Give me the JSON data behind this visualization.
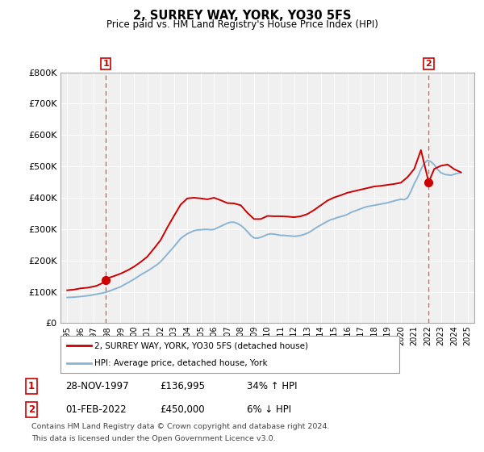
{
  "title": "2, SURREY WAY, YORK, YO30 5FS",
  "subtitle": "Price paid vs. HM Land Registry's House Price Index (HPI)",
  "background_color": "#ffffff",
  "plot_bg_color": "#f0f0f0",
  "grid_color": "#ffffff",
  "hpi_line_color": "#8ab4d4",
  "price_line_color": "#cc0000",
  "sale1_date": "28-NOV-1997",
  "sale1_price": 136995,
  "sale1_hpi_pct": "34% ↑ HPI",
  "sale2_date": "01-FEB-2022",
  "sale2_price": 450000,
  "sale2_hpi_pct": "6% ↓ HPI",
  "sale1_x": 1997.9,
  "sale2_x": 2022.08,
  "ylim_min": 0,
  "ylim_max": 800000,
  "xlim_min": 1994.5,
  "xlim_max": 2025.5,
  "yticks": [
    0,
    100000,
    200000,
    300000,
    400000,
    500000,
    600000,
    700000,
    800000
  ],
  "ytick_labels": [
    "£0",
    "£100K",
    "£200K",
    "£300K",
    "£400K",
    "£500K",
    "£600K",
    "£700K",
    "£800K"
  ],
  "xticks": [
    1995,
    1996,
    1997,
    1998,
    1999,
    2000,
    2001,
    2002,
    2003,
    2004,
    2005,
    2006,
    2007,
    2008,
    2009,
    2010,
    2011,
    2012,
    2013,
    2014,
    2015,
    2016,
    2017,
    2018,
    2019,
    2020,
    2021,
    2022,
    2023,
    2024,
    2025
  ],
  "legend_label1": "2, SURREY WAY, YORK, YO30 5FS (detached house)",
  "legend_label2": "HPI: Average price, detached house, York",
  "footer_line1": "Contains HM Land Registry data © Crown copyright and database right 2024.",
  "footer_line2": "This data is licensed under the Open Government Licence v3.0.",
  "hpi_data_x": [
    1995.0,
    1995.25,
    1995.5,
    1995.75,
    1996.0,
    1996.25,
    1996.5,
    1996.75,
    1997.0,
    1997.25,
    1997.5,
    1997.75,
    1998.0,
    1998.25,
    1998.5,
    1998.75,
    1999.0,
    1999.25,
    1999.5,
    1999.75,
    2000.0,
    2000.25,
    2000.5,
    2000.75,
    2001.0,
    2001.25,
    2001.5,
    2001.75,
    2002.0,
    2002.25,
    2002.5,
    2002.75,
    2003.0,
    2003.25,
    2003.5,
    2003.75,
    2004.0,
    2004.25,
    2004.5,
    2004.75,
    2005.0,
    2005.25,
    2005.5,
    2005.75,
    2006.0,
    2006.25,
    2006.5,
    2006.75,
    2007.0,
    2007.25,
    2007.5,
    2007.75,
    2008.0,
    2008.25,
    2008.5,
    2008.75,
    2009.0,
    2009.25,
    2009.5,
    2009.75,
    2010.0,
    2010.25,
    2010.5,
    2010.75,
    2011.0,
    2011.25,
    2011.5,
    2011.75,
    2012.0,
    2012.25,
    2012.5,
    2012.75,
    2013.0,
    2013.25,
    2013.5,
    2013.75,
    2014.0,
    2014.25,
    2014.5,
    2014.75,
    2015.0,
    2015.25,
    2015.5,
    2015.75,
    2016.0,
    2016.25,
    2016.5,
    2016.75,
    2017.0,
    2017.25,
    2017.5,
    2017.75,
    2018.0,
    2018.25,
    2018.5,
    2018.75,
    2019.0,
    2019.25,
    2019.5,
    2019.75,
    2020.0,
    2020.25,
    2020.5,
    2020.75,
    2021.0,
    2021.25,
    2021.5,
    2021.75,
    2022.0,
    2022.25,
    2022.5,
    2022.75,
    2023.0,
    2023.25,
    2023.5,
    2023.75,
    2024.0,
    2024.25,
    2024.5
  ],
  "hpi_data_y": [
    82000,
    82500,
    83000,
    84000,
    85000,
    86000,
    87500,
    89000,
    91000,
    93000,
    95000,
    97000,
    100000,
    104000,
    108000,
    112000,
    116000,
    122000,
    128000,
    134000,
    140000,
    147000,
    154000,
    160000,
    166000,
    173000,
    180000,
    187000,
    196000,
    208000,
    220000,
    232000,
    244000,
    257000,
    270000,
    278000,
    285000,
    290000,
    295000,
    297000,
    298000,
    299000,
    299000,
    298000,
    299000,
    304000,
    309000,
    314000,
    319000,
    322000,
    322000,
    318000,
    312000,
    303000,
    292000,
    280000,
    272000,
    271000,
    274000,
    278000,
    283000,
    285000,
    284000,
    282000,
    280000,
    280000,
    279000,
    278000,
    277000,
    278000,
    280000,
    283000,
    287000,
    293000,
    300000,
    307000,
    313000,
    319000,
    325000,
    330000,
    333000,
    337000,
    340000,
    343000,
    347000,
    353000,
    357000,
    361000,
    365000,
    369000,
    372000,
    374000,
    376000,
    378000,
    380000,
    382000,
    384000,
    387000,
    390000,
    393000,
    395000,
    394000,
    400000,
    420000,
    445000,
    465000,
    490000,
    510000,
    520000,
    515000,
    505000,
    490000,
    480000,
    475000,
    473000,
    472000,
    475000,
    478000,
    480000
  ],
  "price_data_x": [
    1995.0,
    1995.25,
    1995.5,
    1995.75,
    1996.0,
    1996.25,
    1996.5,
    1996.75,
    1997.0,
    1997.25,
    1997.5,
    1997.75,
    1997.9,
    1998.0,
    1998.5,
    1999.0,
    1999.5,
    2000.0,
    2000.5,
    2001.0,
    2001.5,
    2002.0,
    2002.5,
    2003.0,
    2003.5,
    2004.0,
    2004.5,
    2005.0,
    2005.5,
    2006.0,
    2006.5,
    2007.0,
    2007.5,
    2008.0,
    2008.5,
    2009.0,
    2009.5,
    2010.0,
    2010.5,
    2011.0,
    2011.5,
    2012.0,
    2012.5,
    2013.0,
    2013.5,
    2014.0,
    2014.5,
    2015.0,
    2015.5,
    2016.0,
    2016.5,
    2017.0,
    2017.5,
    2018.0,
    2018.5,
    2019.0,
    2019.5,
    2020.0,
    2020.5,
    2021.0,
    2021.5,
    2022.08,
    2022.5,
    2023.0,
    2023.5,
    2024.0,
    2024.5
  ],
  "price_data_y": [
    105000,
    106000,
    107000,
    109000,
    111000,
    112000,
    113000,
    115000,
    117000,
    120000,
    125000,
    130000,
    136995,
    143000,
    150000,
    158000,
    168000,
    180000,
    195000,
    212000,
    238000,
    265000,
    305000,
    342000,
    378000,
    398000,
    400000,
    398000,
    395000,
    400000,
    392000,
    383000,
    382000,
    376000,
    352000,
    332000,
    332000,
    342000,
    341000,
    341000,
    340000,
    338000,
    341000,
    348000,
    361000,
    376000,
    391000,
    401000,
    408000,
    416000,
    421000,
    426000,
    431000,
    436000,
    438000,
    441000,
    444000,
    448000,
    466000,
    492000,
    552000,
    450000,
    492000,
    502000,
    506000,
    491000,
    481000
  ]
}
